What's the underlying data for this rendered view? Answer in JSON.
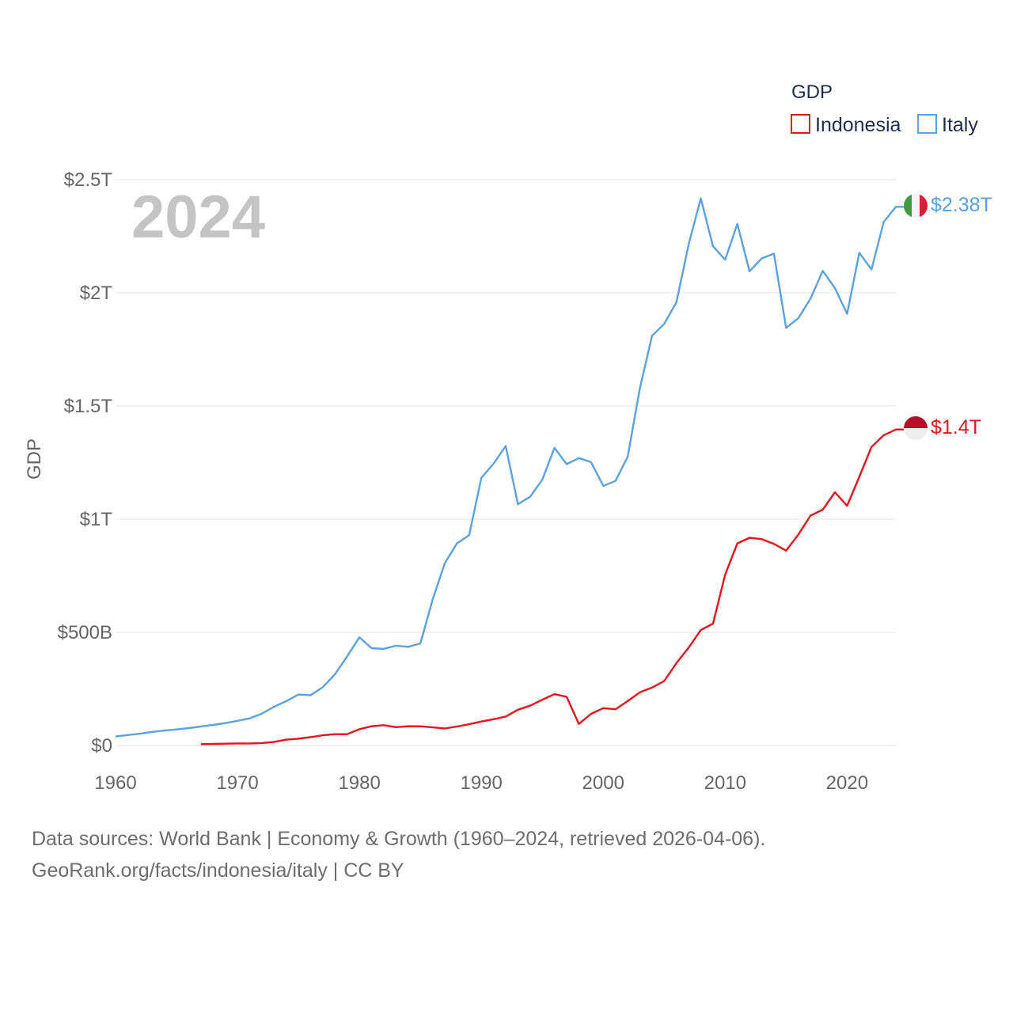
{
  "legend": {
    "title": "GDP",
    "items": [
      {
        "label": "Indonesia",
        "color": "#e8141c"
      },
      {
        "label": "Italy",
        "color": "#5aa2e0"
      }
    ]
  },
  "year_label": "2024",
  "footer": {
    "line1": "Data sources: World Bank | Economy & Growth (1960–2024, retrieved 2026-04-06).",
    "line2": "GeoRank.org/facts/indonesia/italy | CC BY"
  },
  "chart_data": {
    "type": "line",
    "title": "GDP",
    "xlabel": "",
    "ylabel": "GDP",
    "xlim": [
      1960,
      2024
    ],
    "ylim": [
      0,
      2500
    ],
    "unit": "billions USD",
    "x_ticks": [
      "1960",
      "1970",
      "1980",
      "1990",
      "2000",
      "2010",
      "2020"
    ],
    "x_tick_values": [
      1960,
      1970,
      1980,
      1990,
      2000,
      2010,
      2020
    ],
    "y_ticks": [
      "$0",
      "$500B",
      "$1T",
      "$1.5T",
      "$2T",
      "$2.5T"
    ],
    "y_tick_values": [
      0,
      500,
      1000,
      1500,
      2000,
      2500
    ],
    "series": [
      {
        "name": "Italy",
        "color": "#5aa2e0",
        "end_label": "$2.38T",
        "x": [
          1960,
          1961,
          1962,
          1963,
          1964,
          1965,
          1966,
          1967,
          1968,
          1969,
          1970,
          1971,
          1972,
          1973,
          1974,
          1975,
          1976,
          1977,
          1978,
          1979,
          1980,
          1981,
          1982,
          1983,
          1984,
          1985,
          1986,
          1987,
          1988,
          1989,
          1990,
          1991,
          1992,
          1993,
          1994,
          1995,
          1996,
          1997,
          1998,
          1999,
          2000,
          2001,
          2002,
          2003,
          2004,
          2005,
          2006,
          2007,
          2008,
          2009,
          2010,
          2011,
          2012,
          2013,
          2014,
          2015,
          2016,
          2017,
          2018,
          2019,
          2020,
          2021,
          2022,
          2023,
          2024
        ],
        "values": [
          40,
          46,
          52,
          60,
          66,
          71,
          77,
          84,
          91,
          99,
          109,
          120,
          141,
          171,
          196,
          225,
          222,
          258,
          315,
          394,
          478,
          430,
          427,
          441,
          436,
          451,
          644,
          805,
          893,
          929,
          1182,
          1245,
          1323,
          1066,
          1099,
          1174,
          1315,
          1243,
          1270,
          1252,
          1147,
          1169,
          1275,
          1578,
          1810,
          1863,
          1958,
          2213,
          2417,
          2206,
          2146,
          2305,
          2095,
          2152,
          2173,
          1845,
          1888,
          1975,
          2097,
          2021,
          1907,
          2177,
          2103,
          2313,
          2380
        ]
      },
      {
        "name": "Indonesia",
        "color": "#e8141c",
        "end_label": "$1.4T",
        "x": [
          1967,
          1968,
          1969,
          1970,
          1971,
          1972,
          1973,
          1974,
          1975,
          1976,
          1977,
          1978,
          1979,
          1980,
          1981,
          1982,
          1983,
          1984,
          1985,
          1986,
          1987,
          1988,
          1989,
          1990,
          1991,
          1992,
          1993,
          1994,
          1995,
          1996,
          1997,
          1998,
          1999,
          2000,
          2001,
          2002,
          2003,
          2004,
          2005,
          2006,
          2007,
          2008,
          2009,
          2010,
          2011,
          2012,
          2013,
          2014,
          2015,
          2016,
          2017,
          2018,
          2019,
          2020,
          2021,
          2022,
          2023,
          2024
        ],
        "values": [
          6,
          7,
          8,
          9,
          9,
          11,
          16,
          26,
          30,
          37,
          45,
          50,
          50,
          72,
          85,
          90,
          81,
          85,
          85,
          80,
          75,
          84,
          94,
          106,
          116,
          128,
          158,
          176,
          202,
          227,
          215,
          95,
          140,
          165,
          160,
          196,
          235,
          256,
          285,
          364,
          432,
          510,
          538,
          755,
          893,
          918,
          912,
          891,
          861,
          932,
          1016,
          1042,
          1119,
          1059,
          1187,
          1319,
          1371,
          1396
        ]
      }
    ]
  }
}
